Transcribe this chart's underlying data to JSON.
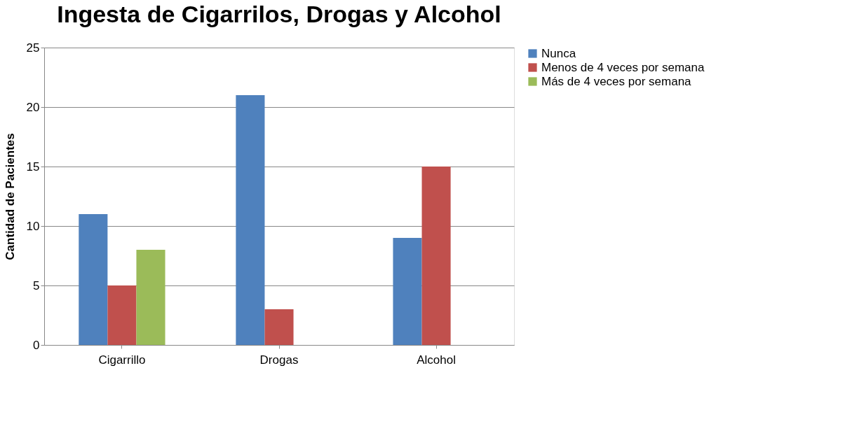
{
  "chart_data": {
    "type": "bar",
    "title": "Ingesta de Cigarrilos, Drogas y Alcohol",
    "ylabel": "Cantidad de Pacientes",
    "categories": [
      "Cigarrillo",
      "Drogas",
      "Alcohol"
    ],
    "series": [
      {
        "name": "Nunca",
        "color": "#4f81bd",
        "values": [
          11,
          21,
          9
        ]
      },
      {
        "name": "Menos de 4 veces por semana",
        "color": "#c0504d",
        "values": [
          5,
          3,
          15
        ]
      },
      {
        "name": "Más de 4 veces por semana",
        "color": "#9bbb59",
        "values": [
          8,
          null,
          null
        ]
      }
    ],
    "ylim": [
      0,
      25
    ],
    "yticks": [
      0,
      5,
      10,
      15,
      20,
      25
    ],
    "grid": "y",
    "legend": "right"
  }
}
